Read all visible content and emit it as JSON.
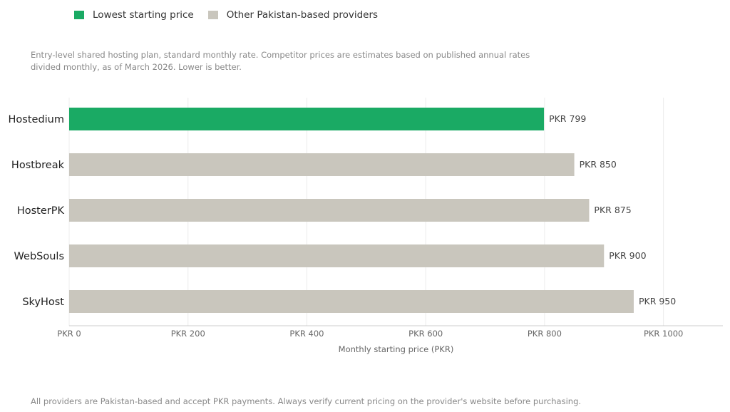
{
  "legend": [
    {
      "label": "Lowest starting price",
      "color": "#1aaa64"
    },
    {
      "label": "Other Pakistan-based providers",
      "color": "#c9c6bd"
    }
  ],
  "subtitle": "Entry-level shared hosting plan, standard monthly rate. Competitor prices are estimates based on published annual rates divided monthly, as of March 2026. Lower is better.",
  "footer": "All providers are Pakistan-based and accept PKR payments. Always verify current pricing on the provider's website before purchasing.",
  "chart_data": {
    "type": "bar",
    "orientation": "horizontal",
    "categories": [
      "Hostedium",
      "Hostbreak",
      "HosterPK",
      "WebSouls",
      "SkyHost"
    ],
    "values": [
      799,
      850,
      875,
      900,
      950
    ],
    "data_labels": [
      "PKR 799",
      "PKR 850",
      "PKR 875",
      "PKR 900",
      "PKR 950"
    ],
    "highlight": [
      "Hostedium"
    ],
    "xlabel": "Monthly starting price (PKR)",
    "ylabel": "",
    "xlim": [
      0,
      1100
    ],
    "xticks": [
      0,
      200,
      400,
      600,
      800,
      1000
    ],
    "xtick_labels": [
      "PKR 0",
      "PKR 200",
      "PKR 400",
      "PKR 600",
      "PKR 800",
      "PKR 1000"
    ],
    "grid": "vertical",
    "legend_placement": "top-left"
  }
}
